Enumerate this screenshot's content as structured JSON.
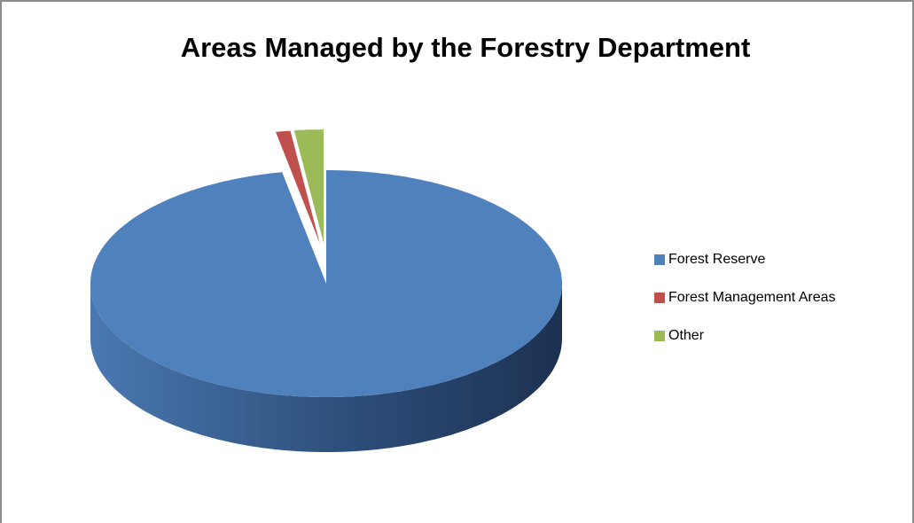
{
  "chart_data": {
    "type": "pie3d",
    "title": "Areas Managed by the Forestry Department",
    "categories": [
      "Forest Reserve",
      "Forest Management Areas",
      "Other"
    ],
    "values": [
      97,
      1,
      2
    ],
    "colors": [
      "#4f81bd",
      "#c0504d",
      "#9bbb59"
    ],
    "legend": "right"
  }
}
